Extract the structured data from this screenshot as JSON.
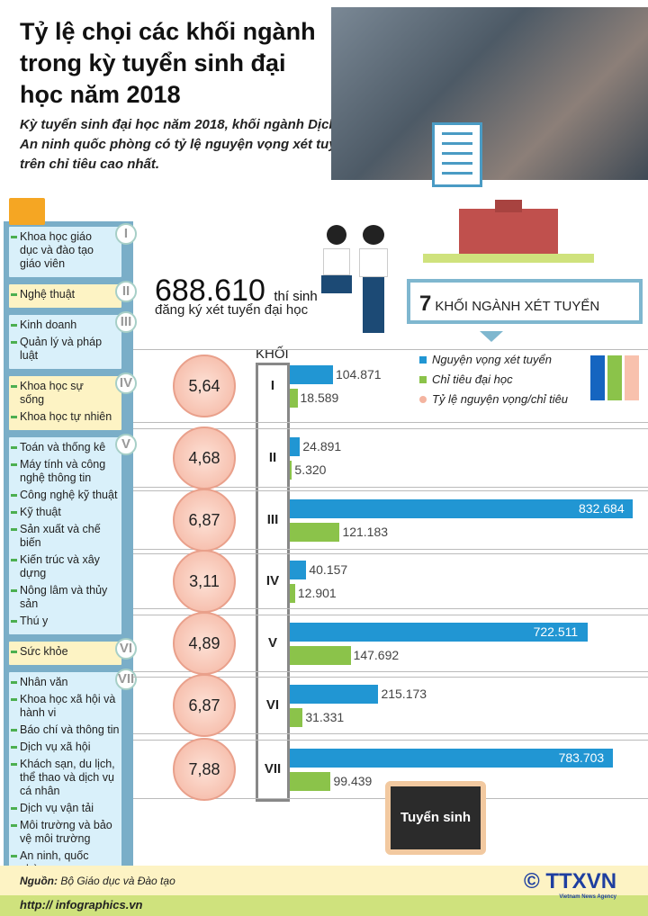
{
  "header": {
    "title": "Tỷ lệ chọi các khối ngành trong kỳ tuyển sinh đại học năm 2018",
    "subtitle": "Kỳ tuyển sinh đại học năm 2018, khối ngành Dịch vụ, An ninh quốc phòng có tỷ lệ nguyện vọng xét tuyển trên chỉ tiêu cao nhất."
  },
  "stats": {
    "candidates": "688.610",
    "candidates_unit": "thí sinh",
    "candidates_desc": "đăng ký xét tuyển đại học",
    "groups_count": "7",
    "groups_label": "KHỐI NGÀNH XÉT TUYỂN"
  },
  "sidebar": {
    "groups": [
      {
        "roman": "I",
        "items": [
          "Khoa học giáo dục và đào tạo giáo viên"
        ]
      },
      {
        "roman": "II",
        "items": [
          "Nghệ thuật"
        ]
      },
      {
        "roman": "III",
        "items": [
          "Kinh doanh",
          "Quản lý và pháp luật"
        ]
      },
      {
        "roman": "IV",
        "items": [
          "Khoa học sự sống",
          "Khoa học tự nhiên"
        ]
      },
      {
        "roman": "V",
        "items": [
          "Toán và thống kê",
          "Máy tính và công nghệ thông tin",
          "Công nghệ kỹ thuật",
          "Kỹ thuật",
          "Sản xuất và chế biến",
          "Kiến trúc và xây dựng",
          "Nông lâm và thủy sản",
          "Thú y"
        ]
      },
      {
        "roman": "VI",
        "items": [
          "Sức khỏe"
        ]
      },
      {
        "roman": "VII",
        "items": [
          "Nhân văn",
          "Khoa học xã hội và hành vi",
          "Báo chí và thông tin",
          "Dịch vụ xã hội",
          "Khách sạn, du lịch, thể thao và dịch vụ cá nhân",
          "Dịch vụ vận tải",
          "Môi trường và bảo vệ môi trường",
          "An ninh, quốc phòng"
        ]
      }
    ]
  },
  "chart_data": {
    "type": "bar",
    "orientation": "horizontal",
    "category_header": "KHỐI",
    "categories": [
      "I",
      "II",
      "III",
      "IV",
      "V",
      "VI",
      "VII"
    ],
    "series": [
      {
        "name": "Nguyện vọng xét tuyển",
        "color": "#2196d3",
        "values": [
          104871,
          24891,
          832684,
          40157,
          722511,
          215173,
          783703
        ],
        "labels": [
          "104.871",
          "24.891",
          "832.684",
          "40.157",
          "722.511",
          "215.173",
          "783.703"
        ]
      },
      {
        "name": "Chỉ tiêu đại học",
        "color": "#8bc34a",
        "values": [
          18589,
          5320,
          121183,
          12901,
          147692,
          31331,
          99439
        ],
        "labels": [
          "18.589",
          "5.320",
          "121.183",
          "12.901",
          "147.692",
          "31.331",
          "99.439"
        ]
      }
    ],
    "ratio": {
      "name": "Tỷ lệ nguyện vọng/chỉ tiêu",
      "color": "#f4b4a0",
      "values": [
        "5,64",
        "4,68",
        "6,87",
        "3,11",
        "4,89",
        "6,87",
        "7,88"
      ]
    }
  },
  "board": "Tuyển sinh",
  "footer": {
    "source_label": "Nguồn:",
    "source": "Bộ Giáo dục và Đào tạo",
    "url": "http:// infographics.vn",
    "logo": "TTXVN",
    "logo_sub": "Vietnam News Agency",
    "copyright": "©"
  }
}
